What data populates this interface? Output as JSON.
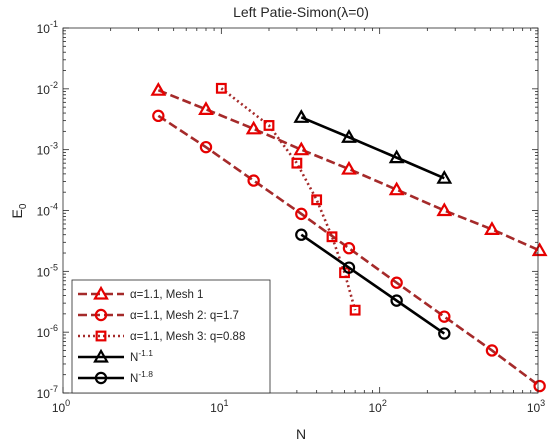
{
  "chart_data": {
    "type": "line",
    "title": "Left Patie-Simon(λ=0)",
    "xlabel": "N",
    "ylabel": "E",
    "ylabel_sub": "0",
    "xscale": "log",
    "yscale": "log",
    "xlim": [
      1,
      1000
    ],
    "ylim": [
      1e-07,
      0.1
    ],
    "grid": false,
    "legend_position": "bottom-left",
    "x_ticks": [
      {
        "value": 1,
        "base": "10",
        "exp": "0"
      },
      {
        "value": 10,
        "base": "10",
        "exp": "1"
      },
      {
        "value": 100,
        "base": "10",
        "exp": "2"
      },
      {
        "value": 1000,
        "base": "10",
        "exp": "3"
      }
    ],
    "y_ticks": [
      {
        "value": 1e-07,
        "base": "10",
        "exp": "-7"
      },
      {
        "value": 1e-06,
        "base": "10",
        "exp": "-6"
      },
      {
        "value": 1e-05,
        "base": "10",
        "exp": "-5"
      },
      {
        "value": 0.0001,
        "base": "10",
        "exp": "-4"
      },
      {
        "value": 0.001,
        "base": "10",
        "exp": "-3"
      },
      {
        "value": 0.01,
        "base": "10",
        "exp": "-2"
      },
      {
        "value": 0.1,
        "base": "10",
        "exp": "-1"
      }
    ],
    "series": [
      {
        "label_parts": [
          {
            "t": "α=1.1, Mesh 1"
          }
        ],
        "color": "#a52a2a",
        "marker_color": "#e60000",
        "dash": "dashed",
        "marker": "triangle",
        "x": [
          4,
          8,
          16,
          32,
          64,
          128,
          256,
          512,
          1024
        ],
        "y": [
          0.0095,
          0.0046,
          0.0022,
          0.001,
          0.00048,
          0.00022,
          0.0001,
          4.9e-05,
          2.2e-05
        ]
      },
      {
        "label_parts": [
          {
            "t": "α=1.1, Mesh 2: q=1.7"
          }
        ],
        "color": "#a52a2a",
        "marker_color": "#e60000",
        "dash": "dashed",
        "marker": "circle",
        "x": [
          4,
          8,
          16,
          32,
          64,
          128,
          256,
          512,
          1024
        ],
        "y": [
          0.0036,
          0.0011,
          0.00031,
          8.8e-05,
          2.4e-05,
          6.5e-06,
          1.8e-06,
          5e-07,
          1.3e-07
        ]
      },
      {
        "label_parts": [
          {
            "t": "α=1.1, Mesh 3: q=0.88"
          }
        ],
        "color": "#a52a2a",
        "marker_color": "#e60000",
        "dash": "dotted",
        "marker": "square",
        "x": [
          10,
          20,
          30,
          40,
          50,
          60,
          70
        ],
        "y": [
          0.0102,
          0.0025,
          0.0006,
          0.00015,
          3.7e-05,
          9.5e-06,
          2.3e-06
        ]
      },
      {
        "label_parts": [
          {
            "t": "N"
          },
          {
            "t": "-1.1",
            "sup": true
          }
        ],
        "color": "#000000",
        "marker_color": "#000000",
        "dash": "solid",
        "marker": "triangle",
        "x": [
          32,
          64,
          128,
          256
        ],
        "y": [
          0.0034,
          0.0016,
          0.00074,
          0.00034
        ]
      },
      {
        "label_parts": [
          {
            "t": "N"
          },
          {
            "t": "-1.8",
            "sup": true
          }
        ],
        "color": "#000000",
        "marker_color": "#000000",
        "dash": "solid",
        "marker": "circle",
        "x": [
          32,
          64,
          128,
          256
        ],
        "y": [
          4e-05,
          1.15e-05,
          3.3e-06,
          9.5e-07
        ]
      }
    ]
  }
}
